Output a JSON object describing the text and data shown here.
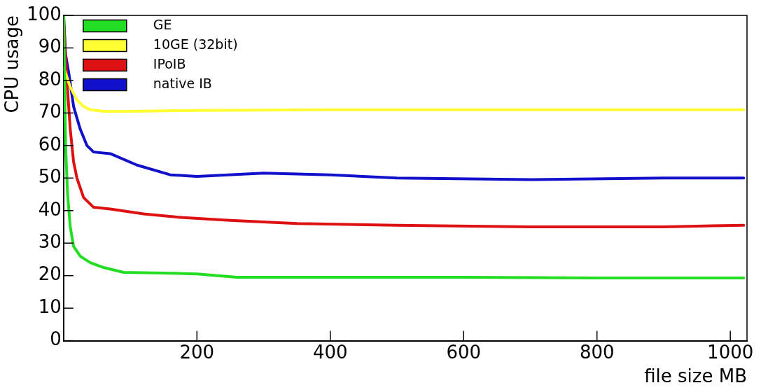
{
  "chart_data": {
    "type": "line",
    "xlabel": "file size MB",
    "ylabel": "CPU usage",
    "xlim": [
      0,
      1025
    ],
    "xticks": [
      200,
      400,
      600,
      800,
      1000
    ],
    "ylim": [
      0,
      100
    ],
    "yticks": [
      0,
      10,
      20,
      30,
      40,
      50,
      60,
      70,
      80,
      90,
      100
    ],
    "grid": false,
    "legend": "top left",
    "marker": "none",
    "line_style": "solid",
    "series": [
      {
        "name": "GE",
        "color": "#22dd22",
        "x": [
          0,
          3,
          6,
          10,
          15,
          25,
          40,
          60,
          90,
          150,
          200,
          260,
          400,
          600,
          800,
          1020
        ],
        "values": [
          100,
          60,
          45,
          35,
          29,
          26,
          24,
          22.5,
          21,
          20.8,
          20.5,
          19.5,
          19.5,
          19.5,
          19.3,
          19.3
        ]
      },
      {
        "name": "10GE (32bit)",
        "color": "#ffff33",
        "x": [
          0,
          10,
          20,
          30,
          40,
          60,
          100,
          200,
          400,
          600,
          800,
          1020
        ],
        "values": [
          84,
          78,
          74,
          72,
          71,
          70.5,
          70.5,
          70.8,
          71,
          71,
          71,
          71
        ]
      },
      {
        "name": "IPoIB",
        "color": "#dd1111",
        "x": [
          0,
          2,
          5,
          10,
          15,
          20,
          30,
          45,
          70,
          120,
          170,
          250,
          350,
          500,
          700,
          900,
          1020
        ],
        "values": [
          100,
          90,
          80,
          65,
          55,
          50,
          44,
          41,
          40.5,
          39,
          38,
          37,
          36,
          35.5,
          35,
          35,
          35.5
        ]
      },
      {
        "name": "native IB",
        "color": "#1111cc",
        "x": [
          0,
          3,
          8,
          15,
          25,
          35,
          45,
          70,
          110,
          160,
          200,
          300,
          400,
          500,
          700,
          900,
          1020
        ],
        "values": [
          100,
          88,
          82,
          72,
          65,
          60,
          58,
          57.5,
          54,
          51,
          50.5,
          51.5,
          51,
          50,
          49.5,
          50,
          50
        ]
      }
    ]
  }
}
